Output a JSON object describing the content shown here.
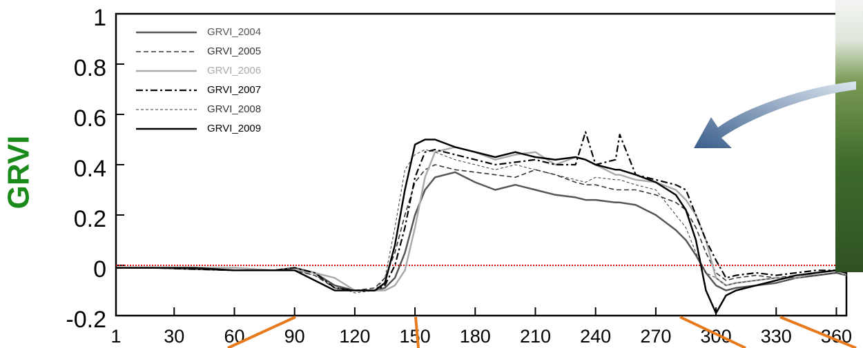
{
  "chart_data": {
    "type": "line",
    "y_label": "GRVI",
    "x": [
      1,
      20,
      40,
      60,
      80,
      90,
      100,
      110,
      120,
      130,
      135,
      140,
      145,
      150,
      155,
      160,
      170,
      180,
      190,
      200,
      210,
      220,
      230,
      235,
      240,
      250,
      252,
      260,
      270,
      280,
      285,
      290,
      295,
      300,
      305,
      310,
      320,
      330,
      340,
      350,
      360,
      365
    ],
    "series": [
      {
        "name": "GRVI_2004",
        "color": "#555555",
        "dash": "none",
        "width": 2.5,
        "values": [
          -0.01,
          -0.01,
          -0.015,
          -0.02,
          -0.02,
          -0.01,
          -0.03,
          -0.08,
          -0.1,
          -0.1,
          -0.09,
          -0.05,
          0.05,
          0.2,
          0.3,
          0.35,
          0.37,
          0.33,
          0.3,
          0.32,
          0.3,
          0.28,
          0.27,
          0.26,
          0.26,
          0.25,
          0.25,
          0.24,
          0.2,
          0.14,
          0.1,
          0.04,
          -0.03,
          -0.08,
          -0.1,
          -0.09,
          -0.08,
          -0.07,
          -0.05,
          -0.04,
          -0.03,
          -0.04
        ]
      },
      {
        "name": "GRVI_2005",
        "color": "#333333",
        "dash": "7 4",
        "width": 1.6,
        "values": [
          -0.01,
          -0.01,
          -0.01,
          -0.02,
          -0.02,
          -0.02,
          -0.04,
          -0.09,
          -0.1,
          -0.09,
          -0.05,
          0.05,
          0.2,
          0.33,
          0.38,
          0.4,
          0.38,
          0.37,
          0.36,
          0.35,
          0.38,
          0.36,
          0.33,
          0.32,
          0.32,
          0.3,
          0.3,
          0.3,
          0.28,
          0.25,
          0.22,
          0.15,
          0.05,
          -0.03,
          -0.06,
          -0.05,
          -0.04,
          -0.05,
          -0.04,
          -0.03,
          -0.02,
          -0.03
        ]
      },
      {
        "name": "GRVI_2006",
        "color": "#aaaaaa",
        "dash": "none",
        "width": 2.5,
        "values": [
          -0.01,
          -0.01,
          -0.01,
          -0.01,
          -0.02,
          -0.02,
          -0.03,
          -0.05,
          -0.1,
          -0.1,
          -0.1,
          -0.08,
          -0.02,
          0.15,
          0.35,
          0.45,
          0.47,
          0.45,
          0.42,
          0.44,
          0.45,
          0.4,
          0.43,
          0.42,
          0.4,
          0.36,
          0.36,
          0.34,
          0.33,
          0.3,
          0.26,
          0.2,
          0.1,
          -0.05,
          -0.08,
          -0.07,
          -0.06,
          -0.05,
          -0.05,
          -0.03,
          -0.02,
          -0.04
        ]
      },
      {
        "name": "GRVI_2007",
        "color": "#000000",
        "dash": "10 4 3 4",
        "width": 2.2,
        "values": [
          -0.01,
          -0.01,
          -0.015,
          -0.02,
          -0.02,
          -0.01,
          -0.03,
          -0.09,
          -0.1,
          -0.1,
          -0.08,
          0,
          0.15,
          0.35,
          0.45,
          0.46,
          0.44,
          0.42,
          0.4,
          0.41,
          0.42,
          0.4,
          0.4,
          0.53,
          0.4,
          0.42,
          0.52,
          0.36,
          0.34,
          0.32,
          0.3,
          0.2,
          0.1,
          0.02,
          -0.05,
          -0.04,
          -0.03,
          -0.04,
          -0.03,
          -0.02,
          -0.02,
          -0.03
        ]
      },
      {
        "name": "GRVI_2008",
        "color": "#333333",
        "dash": "4 3",
        "width": 1,
        "values": [
          -0.01,
          -0.01,
          -0.01,
          -0.02,
          -0.02,
          -0.02,
          -0.04,
          -0.08,
          -0.11,
          -0.1,
          -0.05,
          0.15,
          0.38,
          0.44,
          0.46,
          0.45,
          0.42,
          0.4,
          0.38,
          0.4,
          0.38,
          0.36,
          0.34,
          0.33,
          0.35,
          0.34,
          0.34,
          0.32,
          0.3,
          0.2,
          0.15,
          0.05,
          -0.03,
          -0.05,
          -0.08,
          -0.07,
          -0.06,
          -0.05,
          -0.05,
          -0.04,
          -0.03,
          -0.04
        ]
      },
      {
        "name": "GRVI_2009",
        "color": "#000000",
        "dash": "none",
        "width": 2.5,
        "values": [
          -0.01,
          -0.01,
          -0.01,
          -0.02,
          -0.02,
          -0.02,
          -0.06,
          -0.1,
          -0.1,
          -0.1,
          -0.07,
          0.08,
          0.3,
          0.48,
          0.5,
          0.5,
          0.47,
          0.45,
          0.43,
          0.45,
          0.43,
          0.42,
          0.43,
          0.42,
          0.4,
          0.38,
          0.38,
          0.36,
          0.33,
          0.28,
          0.22,
          0.1,
          -0.1,
          -0.19,
          -0.12,
          -0.1,
          -0.08,
          -0.06,
          -0.04,
          -0.03,
          -0.02,
          -0.03
        ]
      }
    ],
    "xlim": [
      1,
      365
    ],
    "xticks": [
      1,
      30,
      60,
      90,
      120,
      150,
      180,
      210,
      240,
      270,
      300,
      330,
      360
    ],
    "ylim": [
      -0.2,
      1
    ],
    "yticks": [
      -0.2,
      0,
      0.2,
      0.4,
      0.6,
      0.8,
      1
    ],
    "hline": {
      "value": 0,
      "color": "#dd0000"
    },
    "y_label_color": "#1a8a1a",
    "legend": "upper left"
  }
}
